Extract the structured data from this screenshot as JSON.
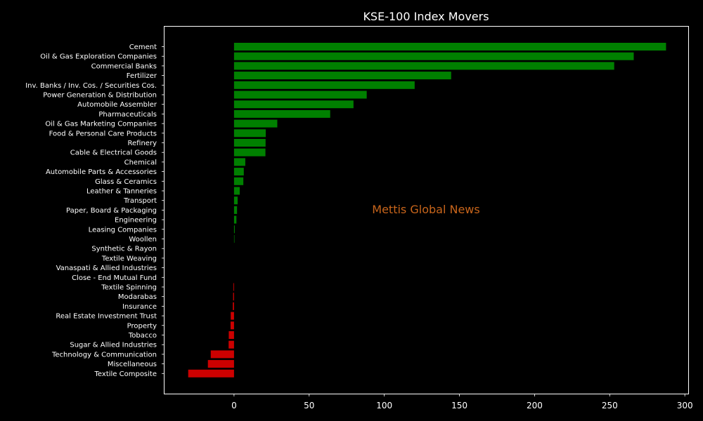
{
  "chart_data": {
    "type": "bar",
    "orientation": "horizontal",
    "title": "KSE-100 Index Movers",
    "watermark": "Mettis Global News",
    "xlabel": "",
    "ylabel": "",
    "xlim": [
      -46.5,
      302.5
    ],
    "xticks": [
      0,
      50,
      100,
      150,
      200,
      250,
      300
    ],
    "grid": false,
    "legend": "none",
    "colors": {
      "background": "#000000",
      "text": "#ffffff",
      "positive": "#008000",
      "negative": "#cc0000",
      "watermark": "#c8651b"
    },
    "categories": [
      "Cement",
      "Oil & Gas Exploration Companies",
      "Commercial Banks",
      "Fertilizer",
      "Inv. Banks / Inv. Cos. / Securities Cos.",
      "Power Generation & Distribution",
      "Automobile Assembler",
      "Pharmaceuticals",
      "Oil & Gas Marketing Companies",
      "Food & Personal Care Products",
      "Refinery",
      "Cable & Electrical Goods",
      "Chemical",
      "Automobile Parts & Accessories",
      "Glass & Ceramics",
      "Leather & Tanneries",
      "Transport",
      "Paper, Board & Packaging",
      "Engineering",
      "Leasing Companies",
      "Woollen",
      "Synthetic & Rayon",
      "Textile Weaving",
      "Vanaspati & Allied Industries",
      "Close - End Mutual Fund",
      "Textile Spinning",
      "Modarabas",
      "Insurance",
      "Real Estate Investment Trust",
      "Property",
      "Tobacco",
      "Sugar & Allied Industries",
      "Technology & Communication",
      "Miscellaneous",
      "Textile Composite"
    ],
    "values": [
      287.5,
      266,
      253,
      144.5,
      120.2,
      88.3,
      79.5,
      64,
      28.8,
      21.1,
      21.0,
      20.9,
      7.5,
      6.5,
      6.2,
      3.8,
      2.4,
      2.0,
      1.6,
      0.5,
      0.3,
      0,
      0,
      0,
      0,
      -0.4,
      -0.6,
      -0.8,
      -2.2,
      -2.3,
      -3.5,
      -3.6,
      -15.5,
      -17.4,
      -30.5
    ]
  }
}
